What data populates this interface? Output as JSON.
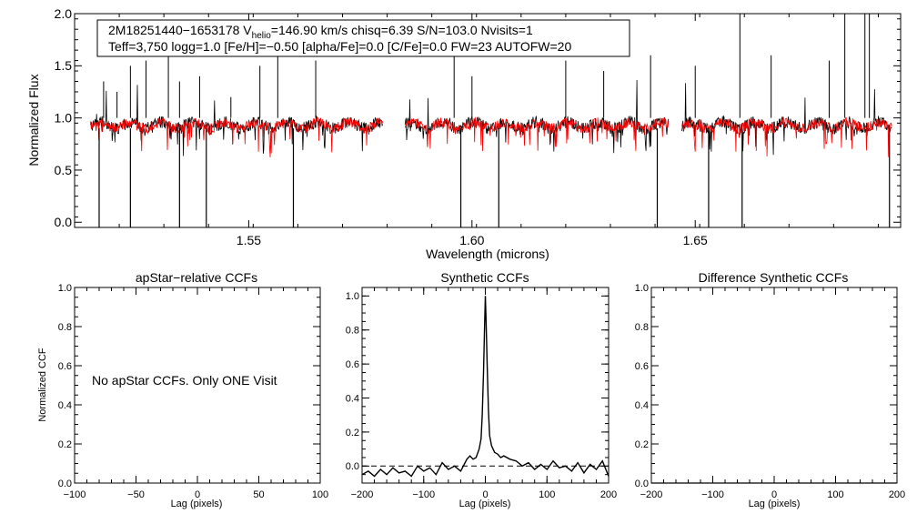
{
  "chart_data": [
    {
      "type": "line",
      "id": "spectrum",
      "ylabel": "Normalized Flux",
      "xlabel": "Wavelength (microns)",
      "xlim": [
        1.511,
        1.696
      ],
      "ylim": [
        -0.05,
        2.0
      ],
      "xticks": [
        1.55,
        1.6,
        1.65
      ],
      "xtick_labels": [
        "1.55",
        "1.60",
        "1.65"
      ],
      "yticks": [
        0.0,
        0.5,
        1.0,
        1.5,
        2.0
      ],
      "ytick_labels": [
        "0.0",
        "0.5",
        "1.0",
        "1.5",
        "2.0"
      ],
      "chips": [
        [
          1.5145,
          1.58
        ],
        [
          1.585,
          1.644
        ],
        [
          1.647,
          1.694
        ]
      ],
      "series": [
        {
          "name": "observed",
          "color": "#000000"
        },
        {
          "name": "model",
          "color": "#ff0000"
        }
      ],
      "info": {
        "line1_prefix": "2M18251440−1653178  V",
        "line1_sub": "helio",
        "line1_suffix": "=146.90 km/s  chisq=6.39  S/N=103.0  Nvisits=1",
        "line2": "Teff=3,750 logg=1.0 [Fe/H]=−0.50 [alpha/Fe]=0.0 [C/Fe]=0.0 FW=23 AUTOFW=20"
      }
    },
    {
      "type": "line",
      "id": "apstar",
      "title": "apStar−relative CCFs",
      "ylabel": "Normalized CCF",
      "xlabel": "Lag (pixels)",
      "xlim": [
        -100,
        100
      ],
      "ylim": [
        0.0,
        1.0
      ],
      "xticks": [
        -100,
        -50,
        0,
        50,
        100
      ],
      "xtick_labels": [
        "−100",
        "−50",
        "0",
        "50",
        "100"
      ],
      "yticks": [
        0.0,
        0.2,
        0.4,
        0.6,
        0.8,
        1.0
      ],
      "ytick_labels": [
        "0.0",
        "0.2",
        "0.4",
        "0.6",
        "0.8",
        "1.0"
      ],
      "annotation": "No apStar CCFs.  Only ONE Visit"
    },
    {
      "type": "line",
      "id": "synthetic",
      "title": "Synthetic CCFs",
      "xlabel": "Lag (pixels)",
      "xlim": [
        -200,
        200
      ],
      "ylim": [
        -0.1,
        1.05
      ],
      "xticks": [
        -200,
        -100,
        0,
        100,
        200
      ],
      "xtick_labels": [
        "−200",
        "−100",
        "0",
        "100",
        "200"
      ],
      "yticks": [
        0.0,
        0.2,
        0.4,
        0.6,
        0.8,
        1.0
      ],
      "ytick_labels": [
        "0.0",
        "0.2",
        "0.4",
        "0.6",
        "0.8",
        "1.0"
      ],
      "zero_line": 0.0,
      "peak": {
        "lag": 0,
        "value": 1.0
      },
      "x": [
        -200,
        -190,
        -180,
        -170,
        -160,
        -150,
        -140,
        -130,
        -120,
        -110,
        -100,
        -90,
        -80,
        -70,
        -60,
        -50,
        -40,
        -30,
        -25,
        -20,
        -15,
        -10,
        -7,
        -5,
        -3,
        -1,
        0,
        1,
        3,
        5,
        7,
        10,
        15,
        20,
        25,
        30,
        40,
        50,
        60,
        70,
        80,
        90,
        100,
        110,
        120,
        130,
        140,
        150,
        160,
        170,
        180,
        190,
        200
      ],
      "values": [
        -0.05,
        -0.03,
        -0.06,
        -0.02,
        -0.05,
        -0.01,
        -0.04,
        -0.03,
        -0.06,
        0.0,
        -0.03,
        -0.01,
        -0.05,
        0.02,
        -0.02,
        0.0,
        -0.03,
        0.04,
        0.06,
        0.04,
        0.05,
        0.1,
        0.16,
        0.3,
        0.55,
        0.85,
        1.0,
        0.88,
        0.6,
        0.33,
        0.18,
        0.12,
        0.08,
        0.07,
        0.05,
        0.06,
        0.04,
        0.03,
        0.0,
        0.02,
        -0.02,
        0.01,
        -0.02,
        0.03,
        -0.01,
        0.0,
        -0.03,
        0.02,
        -0.04,
        0.01,
        -0.02,
        0.03,
        -0.06
      ]
    },
    {
      "type": "line",
      "id": "difference",
      "title": "Difference Synthetic CCFs",
      "xlabel": "Lag (pixels)",
      "xlim": [
        -200,
        200
      ],
      "ylim": [
        0.0,
        1.0
      ],
      "xticks": [
        -200,
        -100,
        0,
        100,
        200
      ],
      "xtick_labels": [
        "−200",
        "−100",
        "0",
        "100",
        "200"
      ],
      "yticks": [
        0.0,
        0.2,
        0.4,
        0.6,
        0.8,
        1.0
      ],
      "ytick_labels": [
        "0.0",
        "0.2",
        "0.4",
        "0.6",
        "0.8",
        "1.0"
      ],
      "x": [
        -200,
        200
      ],
      "values": [
        0.0,
        0.0
      ]
    }
  ]
}
